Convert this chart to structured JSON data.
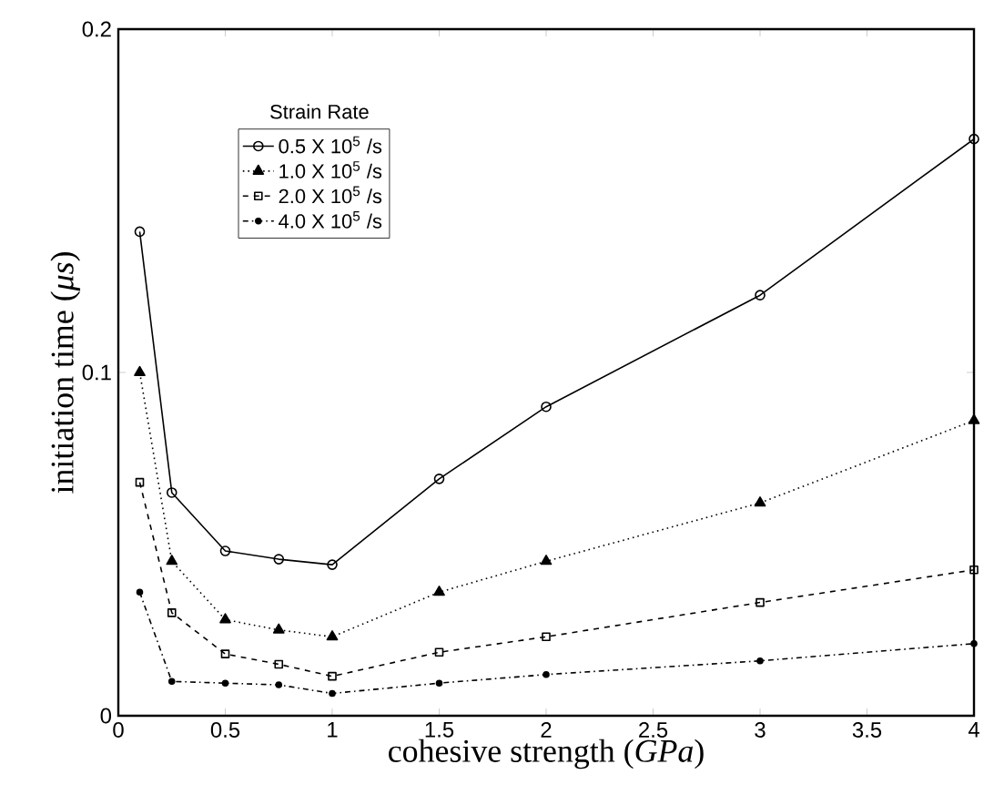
{
  "chart_data": {
    "type": "line",
    "xlabel": "cohesive strength (*GPa*)",
    "ylabel": "initiation time (*μs*)",
    "legend_title": "Strain Rate",
    "legend": "top left",
    "grid": false,
    "x": [
      0.1,
      0.25,
      0.5,
      0.75,
      1,
      1.5,
      2,
      3,
      4
    ],
    "xlim": [
      0,
      4
    ],
    "xticks": [
      0,
      0.5,
      1,
      1.5,
      2,
      2.5,
      3,
      3.5,
      4
    ],
    "ylim": [
      0,
      0.2
    ],
    "yticks": [
      0,
      0.1,
      0.2
    ],
    "series": [
      {
        "name": "0.5 X 10$^{5}$ /s",
        "color": "#000000",
        "marker": "circle",
        "line_style": "solid",
        "values": [
          0.141,
          0.065,
          0.048,
          0.0456,
          0.044,
          0.069,
          0.09,
          0.1225,
          0.168
        ]
      },
      {
        "name": "1.0 X 10$^{5}$ /s",
        "color": "#000000",
        "marker": "triangle",
        "line_style": "dotted",
        "values": [
          0.1,
          0.045,
          0.028,
          0.025,
          0.023,
          0.036,
          0.045,
          0.062,
          0.086
        ]
      },
      {
        "name": "2.0 X 10$^{5}$ /s",
        "color": "#000000",
        "marker": "square",
        "line_style": "dashed",
        "values": [
          0.068,
          0.03,
          0.018,
          0.015,
          0.0115,
          0.0185,
          0.023,
          0.033,
          0.0425
        ]
      },
      {
        "name": "4.0 X 10$^{5}$ /s",
        "color": "#000000",
        "marker": "star",
        "line_style": "dashdot",
        "values": [
          0.036,
          0.01,
          0.0095,
          0.009,
          0.0065,
          0.0095,
          0.012,
          0.016,
          0.021
        ]
      }
    ]
  }
}
